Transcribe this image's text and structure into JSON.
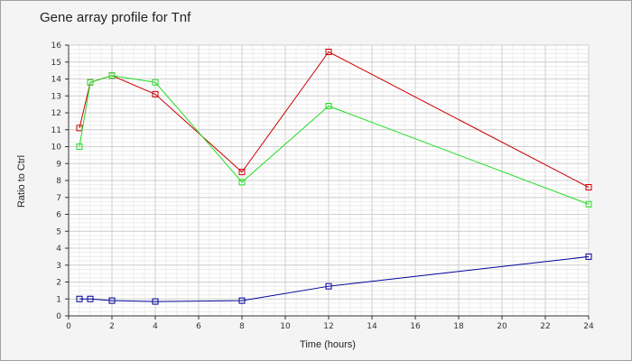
{
  "chart_data": {
    "type": "line",
    "title": "Gene array profile for Tnf",
    "xlabel": "Time (hours)",
    "ylabel": "Ratio to Ctrl",
    "xlim": [
      0,
      24
    ],
    "ylim": [
      0,
      16
    ],
    "xticks": [
      0,
      2,
      4,
      6,
      8,
      10,
      12,
      14,
      16,
      18,
      20,
      22,
      24
    ],
    "yticks": [
      0,
      1,
      2,
      3,
      4,
      5,
      6,
      7,
      8,
      9,
      10,
      11,
      12,
      13,
      14,
      15,
      16
    ],
    "grid": true,
    "marker": "square",
    "series": [
      {
        "color": "#cc0000",
        "x": [
          0.5,
          1,
          2,
          4,
          8,
          12,
          24
        ],
        "y": [
          11.1,
          13.8,
          14.2,
          13.1,
          8.5,
          15.6,
          7.6
        ]
      },
      {
        "color": "#22dd22",
        "x": [
          0.5,
          1,
          2,
          4,
          8,
          12,
          24
        ],
        "y": [
          10.0,
          13.8,
          14.2,
          13.8,
          7.9,
          12.4,
          6.6
        ]
      },
      {
        "color": "#000099",
        "x": [
          0.5,
          1,
          2,
          4,
          8,
          12,
          24
        ],
        "y": [
          1.0,
          1.0,
          0.9,
          0.85,
          0.9,
          1.75,
          3.5
        ]
      }
    ]
  }
}
